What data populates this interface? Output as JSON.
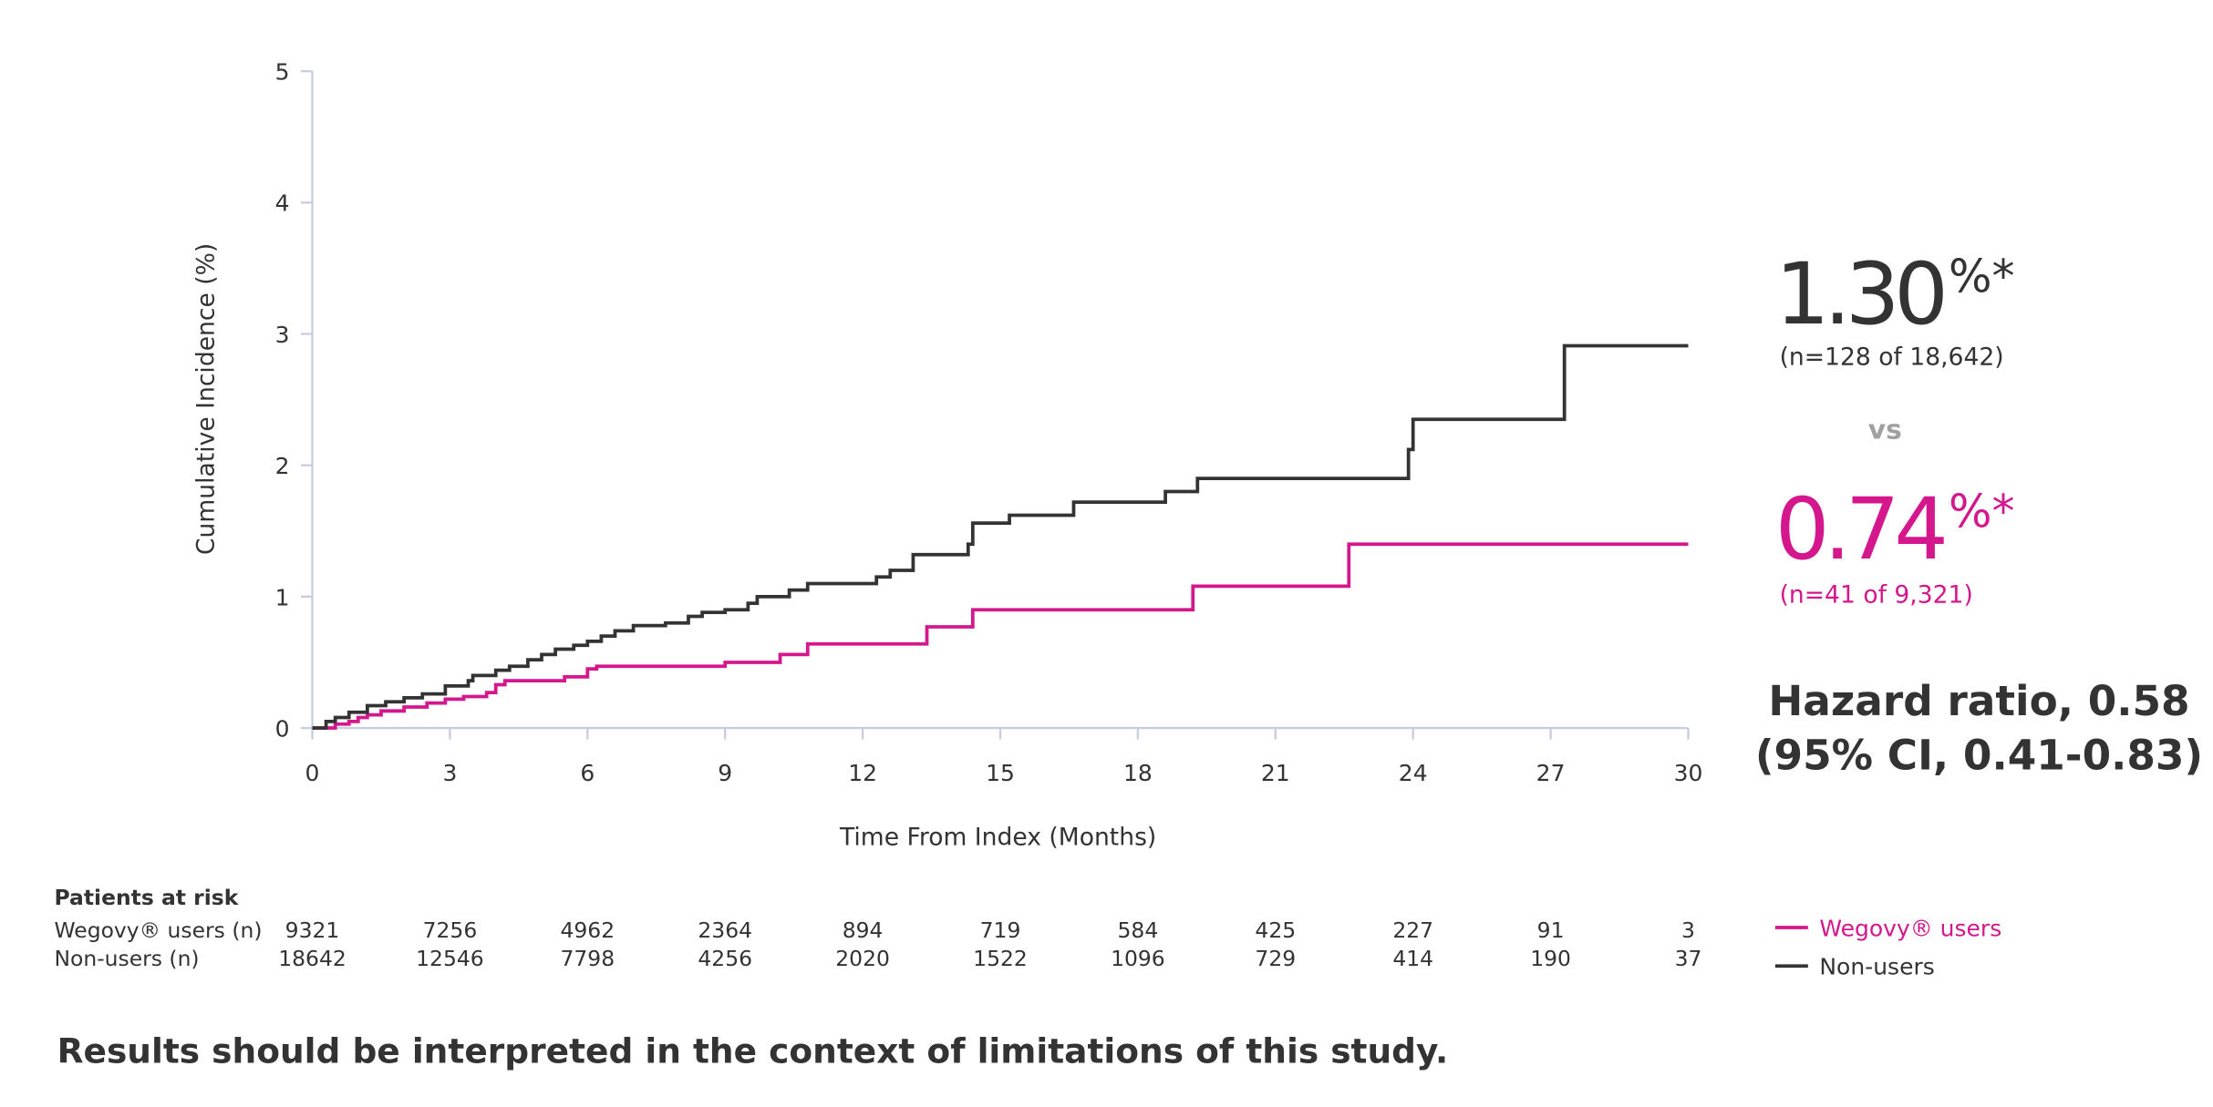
{
  "chart_data": {
    "type": "line",
    "step": true,
    "y_label": "Cumulative Incidence (%)",
    "x_label": "Time From Index (Months)",
    "xlim": [
      0,
      30
    ],
    "xticks": [
      0,
      3,
      6,
      9,
      12,
      15,
      18,
      21,
      24,
      27,
      30
    ],
    "ylim": [
      0,
      5
    ],
    "yticks": [
      0,
      1,
      2,
      3,
      4,
      5
    ],
    "legend": "bottom-right",
    "series": [
      {
        "name": "Wegovy® users",
        "color": "#d4178d",
        "x": [
          0,
          0.5,
          0.8,
          1.0,
          1.2,
          1.5,
          2.0,
          2.5,
          2.9,
          3.3,
          3.8,
          4.0,
          4.2,
          5.5,
          6.0,
          6.2,
          9.0,
          10.2,
          10.8,
          13.4,
          14.4,
          19.2,
          22.6,
          30
        ],
        "values": [
          0,
          0.03,
          0.05,
          0.08,
          0.1,
          0.13,
          0.16,
          0.19,
          0.22,
          0.24,
          0.27,
          0.33,
          0.36,
          0.39,
          0.45,
          0.47,
          0.5,
          0.56,
          0.64,
          0.77,
          0.9,
          1.08,
          1.4,
          1.4
        ]
      },
      {
        "name": "Non-users",
        "color": "#333333",
        "x": [
          0,
          0.3,
          0.5,
          0.8,
          1.2,
          1.6,
          2.0,
          2.4,
          2.9,
          3.4,
          3.5,
          4.0,
          4.3,
          4.7,
          5.0,
          5.3,
          5.7,
          6.0,
          6.3,
          6.6,
          7.0,
          7.7,
          8.2,
          8.5,
          9.0,
          9.5,
          9.7,
          10.4,
          10.8,
          12.3,
          12.6,
          13.1,
          14.3,
          14.4,
          15.2,
          16.6,
          18.6,
          19.3,
          23.9,
          24.0,
          27.3,
          30
        ],
        "values": [
          0,
          0.05,
          0.08,
          0.12,
          0.17,
          0.2,
          0.23,
          0.26,
          0.32,
          0.36,
          0.4,
          0.44,
          0.47,
          0.52,
          0.56,
          0.6,
          0.63,
          0.66,
          0.7,
          0.74,
          0.78,
          0.8,
          0.85,
          0.88,
          0.9,
          0.95,
          1.0,
          1.05,
          1.1,
          1.15,
          1.2,
          1.32,
          1.4,
          1.56,
          1.62,
          1.72,
          1.8,
          1.9,
          2.12,
          2.35,
          2.91,
          2.91
        ]
      }
    ],
    "annotations": {
      "nonusers_value": "1.30",
      "nonusers_mark": "%*",
      "nonusers_n": "(n=128 of 18,642)",
      "vs": "vs",
      "wegovy_value": "0.74",
      "wegovy_mark": "%*",
      "wegovy_n": "(n=41 of 9,321)",
      "hazard": "Hazard ratio, 0.58",
      "ci": "(95% CI, 0.41-0.83)"
    },
    "risk_table": {
      "title": "Patients at risk",
      "rows": [
        {
          "label": "Wegovy® users (n)",
          "values": [
            9321,
            7256,
            4962,
            2364,
            894,
            719,
            584,
            425,
            227,
            91,
            3
          ]
        },
        {
          "label": "Non-users (n)",
          "values": [
            18642,
            12546,
            7798,
            4256,
            2020,
            1522,
            1096,
            729,
            414,
            190,
            37
          ]
        }
      ]
    },
    "footnote": "Results should be interpreted in the context of limitations of this study."
  }
}
